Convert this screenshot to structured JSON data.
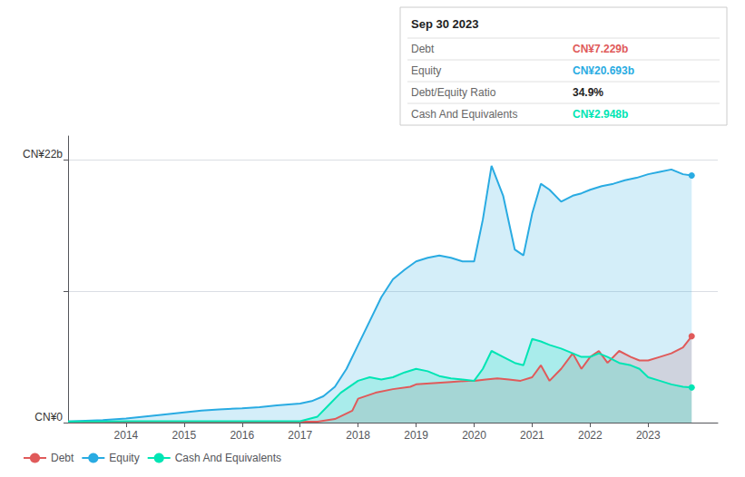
{
  "chart_data": {
    "type": "area",
    "series": [
      {
        "name": "Debt",
        "color": "#e05a5a",
        "x": [
          2013.0,
          2013.3,
          2013.6,
          2014.0,
          2014.3,
          2014.6,
          2015.0,
          2015.3,
          2015.6,
          2016.0,
          2016.3,
          2016.6,
          2017.0,
          2017.3,
          2017.6,
          2017.9,
          2018.0,
          2018.3,
          2018.6,
          2018.9,
          2019.0,
          2019.3,
          2019.6,
          2019.9,
          2020.0,
          2020.2,
          2020.4,
          2020.6,
          2020.8,
          2021.0,
          2021.15,
          2021.3,
          2021.5,
          2021.7,
          2021.85,
          2022.0,
          2022.15,
          2022.3,
          2022.5,
          2022.7,
          2022.85,
          2023.0,
          2023.2,
          2023.4,
          2023.6,
          2023.75
        ],
        "values": [
          0.05,
          0.05,
          0.05,
          0.08,
          0.08,
          0.08,
          0.08,
          0.08,
          0.08,
          0.08,
          0.08,
          0.08,
          0.08,
          0.08,
          0.3,
          1.0,
          2.0,
          2.5,
          2.8,
          3.0,
          3.2,
          3.3,
          3.4,
          3.5,
          3.5,
          3.6,
          3.7,
          3.6,
          3.5,
          3.8,
          4.8,
          3.5,
          4.5,
          5.8,
          4.5,
          5.5,
          6.0,
          5.0,
          6.0,
          5.5,
          5.2,
          5.2,
          5.5,
          5.8,
          6.3,
          7.229
        ]
      },
      {
        "name": "Equity",
        "color": "#29abe2",
        "x": [
          2013.0,
          2013.3,
          2013.6,
          2014.0,
          2014.3,
          2014.6,
          2015.0,
          2015.3,
          2015.6,
          2016.0,
          2016.3,
          2016.6,
          2017.0,
          2017.2,
          2017.4,
          2017.6,
          2017.8,
          2018.0,
          2018.2,
          2018.4,
          2018.6,
          2018.8,
          2019.0,
          2019.2,
          2019.4,
          2019.6,
          2019.8,
          2020.0,
          2020.15,
          2020.3,
          2020.5,
          2020.7,
          2020.85,
          2021.0,
          2021.15,
          2021.3,
          2021.5,
          2021.7,
          2021.85,
          2022.0,
          2022.2,
          2022.4,
          2022.6,
          2022.8,
          2023.0,
          2023.2,
          2023.4,
          2023.6,
          2023.75
        ],
        "values": [
          0.1,
          0.15,
          0.2,
          0.35,
          0.5,
          0.65,
          0.85,
          1.0,
          1.1,
          1.2,
          1.3,
          1.45,
          1.6,
          1.8,
          2.2,
          3.0,
          4.5,
          6.5,
          8.5,
          10.5,
          12.0,
          12.8,
          13.5,
          13.8,
          14.0,
          13.8,
          13.5,
          13.5,
          17.0,
          21.5,
          19.0,
          14.5,
          14.0,
          17.5,
          20.0,
          19.5,
          18.5,
          19.0,
          19.2,
          19.5,
          19.8,
          20.0,
          20.3,
          20.5,
          20.8,
          21.0,
          21.2,
          20.8,
          20.693
        ]
      },
      {
        "name": "Cash And Equivalents",
        "color": "#00e5b4",
        "x": [
          2013.0,
          2013.3,
          2013.6,
          2014.0,
          2014.3,
          2014.6,
          2015.0,
          2015.3,
          2015.6,
          2016.0,
          2016.3,
          2016.6,
          2017.0,
          2017.3,
          2017.5,
          2017.7,
          2018.0,
          2018.2,
          2018.4,
          2018.6,
          2018.8,
          2019.0,
          2019.2,
          2019.4,
          2019.6,
          2019.8,
          2020.0,
          2020.15,
          2020.3,
          2020.5,
          2020.7,
          2020.85,
          2021.0,
          2021.15,
          2021.3,
          2021.5,
          2021.7,
          2021.85,
          2022.0,
          2022.15,
          2022.3,
          2022.5,
          2022.7,
          2022.85,
          2023.0,
          2023.2,
          2023.4,
          2023.6,
          2023.75
        ],
        "values": [
          0.1,
          0.1,
          0.1,
          0.12,
          0.12,
          0.12,
          0.12,
          0.12,
          0.12,
          0.12,
          0.12,
          0.12,
          0.12,
          0.5,
          1.5,
          2.5,
          3.5,
          3.8,
          3.6,
          3.8,
          4.2,
          4.5,
          4.3,
          3.9,
          3.7,
          3.6,
          3.5,
          4.5,
          6.0,
          5.5,
          5.0,
          4.8,
          7.0,
          6.8,
          6.5,
          6.2,
          5.8,
          5.5,
          5.5,
          5.8,
          5.5,
          5.0,
          4.8,
          4.5,
          3.8,
          3.5,
          3.2,
          3.0,
          2.948
        ]
      }
    ],
    "xlim": [
      2013.0,
      2024.2
    ],
    "xticks": [
      2014,
      2015,
      2016,
      2017,
      2018,
      2019,
      2020,
      2021,
      2022,
      2023
    ],
    "ylim": [
      0,
      24
    ],
    "yticks": [
      0,
      11,
      22
    ],
    "grid": true,
    "tick_labels": "x",
    "legend": "lower left",
    "annotations": [
      {
        "text": "CN¥22b",
        "y": 22
      },
      {
        "text": "CN¥0",
        "y": 0
      }
    ],
    "info_box": {
      "title": "Sep 30 2023",
      "rows": [
        {
          "label": "Debt",
          "value": "CN¥7.229b",
          "color": "#e05a5a"
        },
        {
          "label": "Equity",
          "value": "CN¥20.693b",
          "color": "#29abe2"
        },
        {
          "label": "Debt/Equity Ratio",
          "value": "34.9%"
        },
        {
          "label": "Cash And Equivalents",
          "value": "CN¥2.948b",
          "color": "#00e5b4"
        }
      ]
    }
  }
}
